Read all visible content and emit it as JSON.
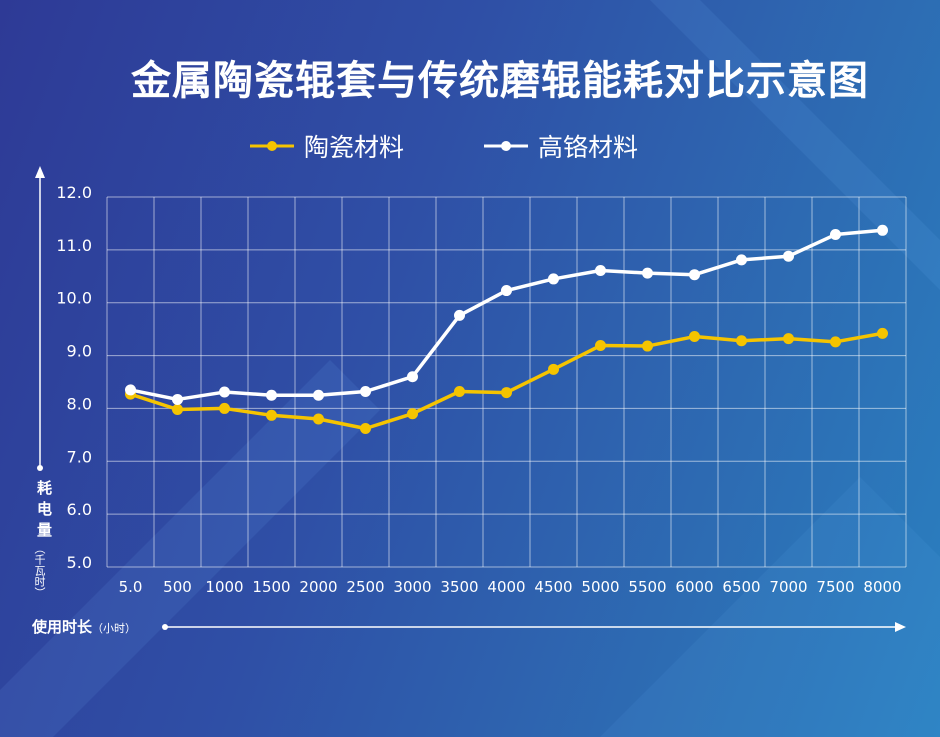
{
  "chart_data": {
    "type": "line",
    "title": "金属陶瓷辊套与传统磨辊能耗对比示意图",
    "ylabel": "耗电量",
    "ylabel_unit": "（千瓦时）",
    "xlabel": "使用时长",
    "xlabel_unit": "（小时）",
    "ylim": [
      5.0,
      12.0
    ],
    "yticks": [
      "5.0",
      "6.0",
      "7.0",
      "8.0",
      "9.0",
      "10.0",
      "11.0",
      "12.0"
    ],
    "categories": [
      "5.0",
      "500",
      "1000",
      "1500",
      "2000",
      "2500",
      "3000",
      "3500",
      "4000",
      "4500",
      "5000",
      "5500",
      "6000",
      "6500",
      "7000",
      "7500",
      "8000"
    ],
    "grid": true,
    "legend_position": "top",
    "series": [
      {
        "name": "陶瓷材料",
        "color": "#f5c400",
        "values": [
          8.27,
          7.98,
          8.0,
          7.87,
          7.8,
          7.62,
          7.9,
          8.32,
          8.3,
          8.74,
          9.19,
          9.18,
          9.36,
          9.28,
          9.32,
          9.26,
          9.42
        ]
      },
      {
        "name": "高铬材料",
        "color": "#ffffff",
        "values": [
          8.35,
          8.17,
          8.31,
          8.25,
          8.25,
          8.32,
          8.6,
          9.76,
          10.23,
          10.45,
          10.61,
          10.56,
          10.53,
          10.81,
          10.88,
          11.29,
          11.37
        ]
      }
    ]
  }
}
